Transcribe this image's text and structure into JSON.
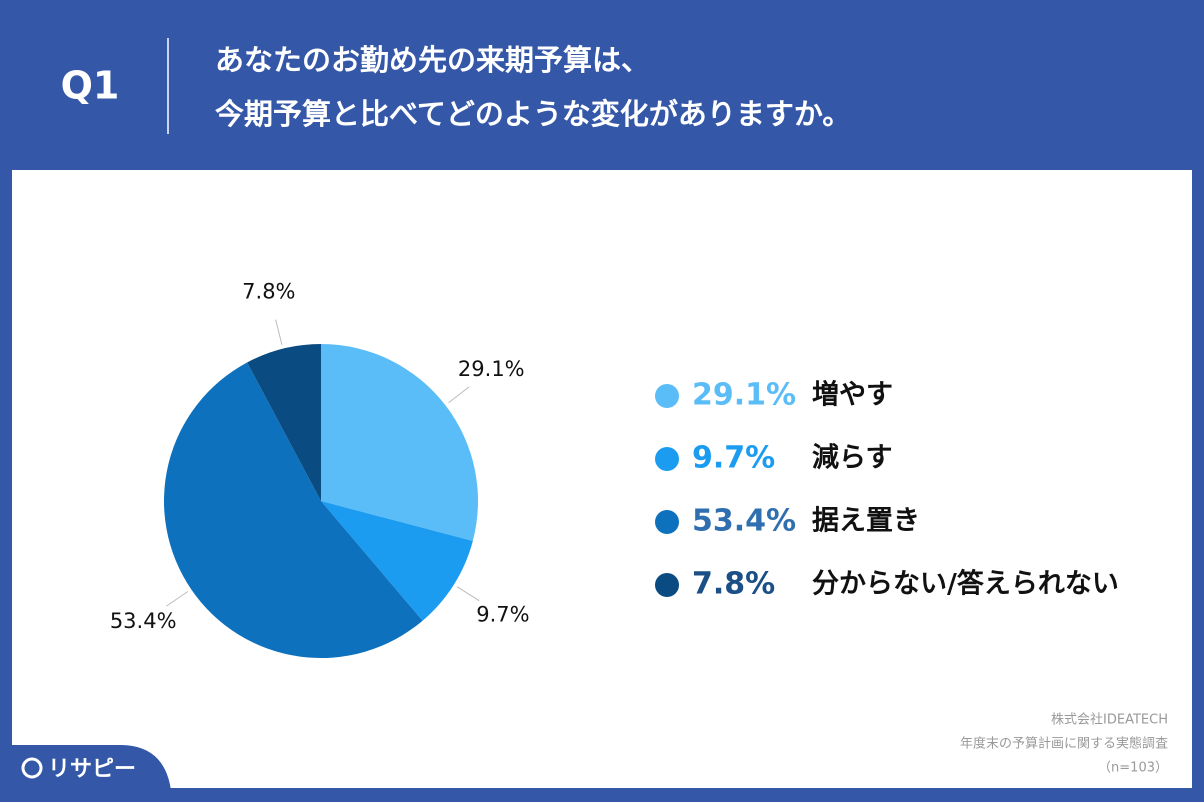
{
  "chart_data": {
    "type": "pie",
    "question_number": "Q1",
    "title": [
      "あなたのお勤め先の来期予算は、",
      "今期予算と比べてどのような変化がありますか。"
    ],
    "categories": [
      "増やす",
      "減らす",
      "据え置き",
      "分からない/答えられない"
    ],
    "values": [
      29.1,
      9.7,
      53.4,
      7.8
    ],
    "value_labels": [
      "29.1%",
      "9.7%",
      "53.4%",
      "7.8%"
    ],
    "colors": [
      "#5bbdf8",
      "#1b9cf0",
      "#0d71bd",
      "#0a4b82"
    ],
    "legend_text_colors": [
      "#5bbdf8",
      "#1b9cf0",
      "#2f6fb0",
      "#1b4f85"
    ],
    "legend": "right",
    "source": [
      "株式会社IDEATECH",
      "年度末の予算計画に関する実態調査",
      "（n=103）"
    ],
    "logo": "リサピー"
  }
}
